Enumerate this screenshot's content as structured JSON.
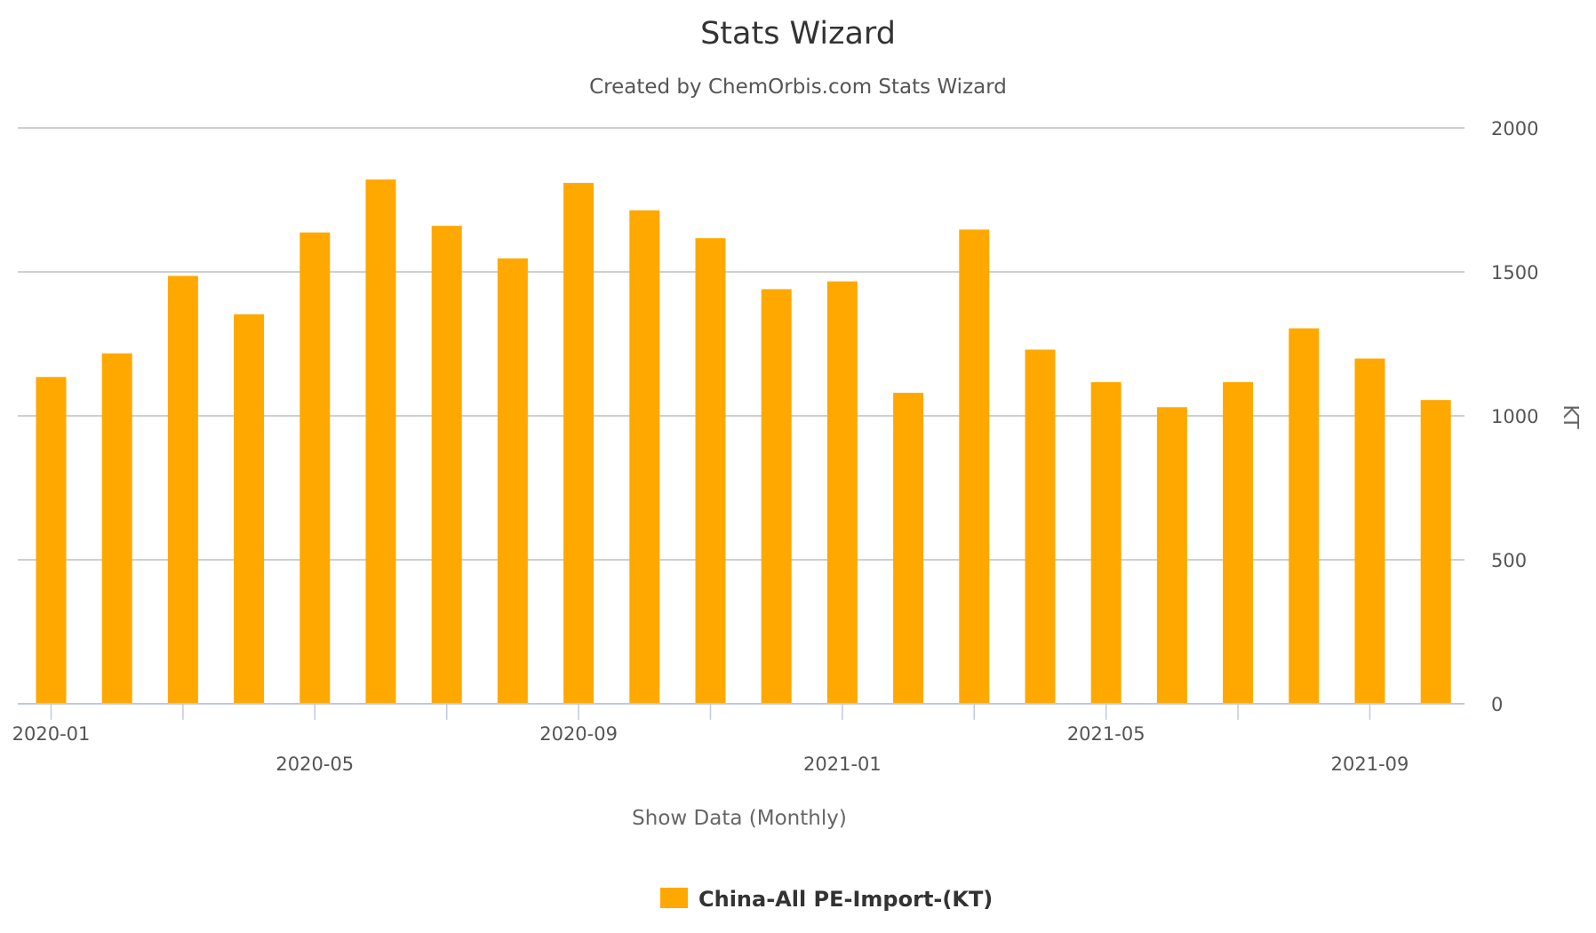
{
  "chart_data": {
    "type": "bar",
    "title": "Stats Wizard",
    "subtitle": "Created by ChemOrbis.com Stats Wizard",
    "xlabel": "Show Data (Monthly)",
    "ylabel": "KT",
    "ylim": [
      0,
      2000
    ],
    "yticks": [
      0,
      500,
      1000,
      1500,
      2000
    ],
    "grid": true,
    "legend_position": "bottom",
    "categories": [
      "2020-01",
      "2020-02",
      "2020-03",
      "2020-04",
      "2020-05",
      "2020-06",
      "2020-07",
      "2020-08",
      "2020-09",
      "2020-10",
      "2020-11",
      "2020-12",
      "2021-01",
      "2021-02",
      "2021-03",
      "2021-04",
      "2021-05",
      "2021-06",
      "2021-07",
      "2021-08",
      "2021-09",
      "2021-10"
    ],
    "xtick_labels": [
      {
        "category": "2020-01",
        "label": "2020-01",
        "row": 0
      },
      {
        "category": "2020-05",
        "label": "2020-05",
        "row": 1
      },
      {
        "category": "2020-09",
        "label": "2020-09",
        "row": 0
      },
      {
        "category": "2021-01",
        "label": "2021-01",
        "row": 1
      },
      {
        "category": "2021-05",
        "label": "2021-05",
        "row": 0
      },
      {
        "category": "2021-09",
        "label": "2021-09",
        "row": 1
      }
    ],
    "series": [
      {
        "name": "China-All PE-Import-(KT)",
        "color": "#FFA800",
        "values": [
          1135,
          1217,
          1486,
          1353,
          1637,
          1821,
          1660,
          1547,
          1809,
          1714,
          1617,
          1440,
          1467,
          1080,
          1647,
          1230,
          1117,
          1030,
          1117,
          1304,
          1199,
          1055
        ]
      }
    ]
  },
  "colors": {
    "bar": "#FFA800",
    "grid": "#bfbfbf",
    "axis": "#c0c8dc",
    "title": "#333333",
    "subtitle": "#555555",
    "tick_text": "#555555",
    "axis_title": "#666666"
  }
}
